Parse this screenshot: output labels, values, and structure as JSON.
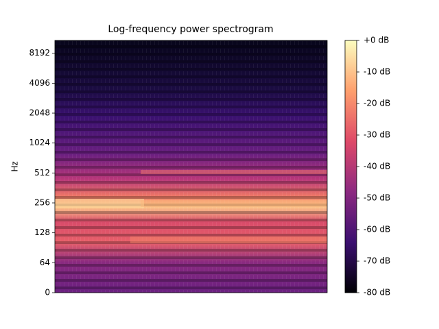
{
  "chart_data": {
    "type": "spectrogram",
    "title": "Log-frequency power spectrogram",
    "y_label": "Hz",
    "yscale": "symlog",
    "ylim": [
      0,
      11025
    ],
    "yticks": [
      0,
      64,
      128,
      256,
      512,
      1024,
      2048,
      4096,
      8192
    ],
    "colormap": "magma",
    "colorbar": {
      "clim": [
        -80,
        0
      ],
      "ticks": [
        {
          "value": 0,
          "label": "+0 dB"
        },
        {
          "value": -10,
          "label": "-10 dB"
        },
        {
          "value": -20,
          "label": "-20 dB"
        },
        {
          "value": -30,
          "label": "-30 dB"
        },
        {
          "value": -40,
          "label": "-40 dB"
        },
        {
          "value": -50,
          "label": "-50 dB"
        },
        {
          "value": -60,
          "label": "-60 dB"
        },
        {
          "value": -70,
          "label": "-70 dB"
        },
        {
          "value": -80,
          "label": "-80 dB"
        }
      ]
    }
  }
}
